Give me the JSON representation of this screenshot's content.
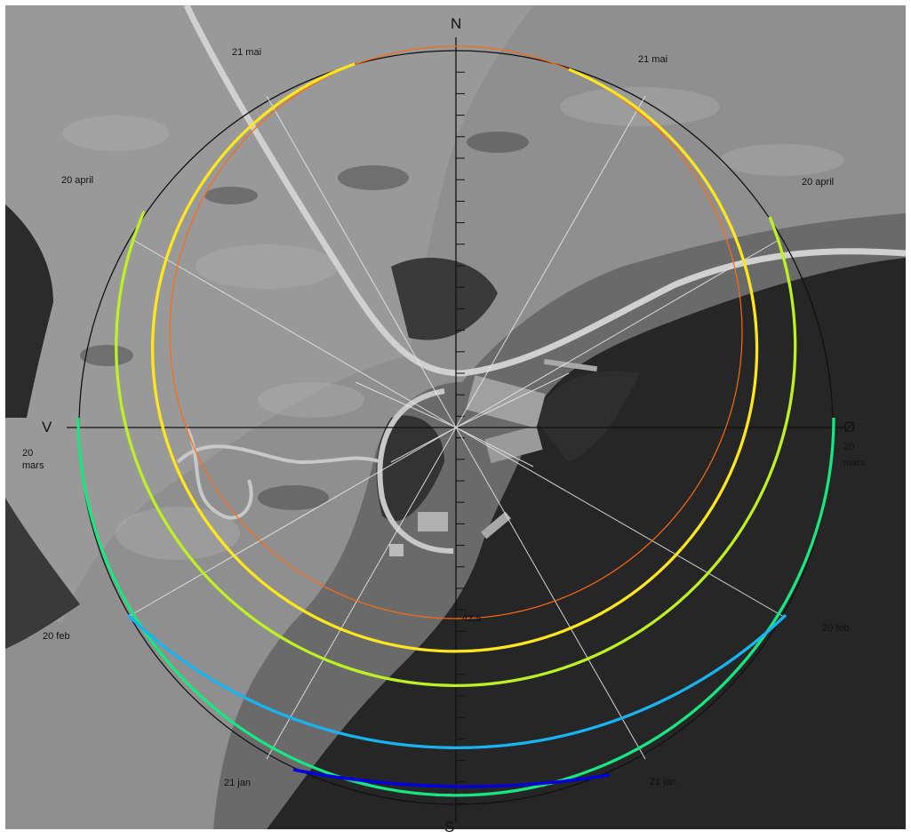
{
  "diagram": {
    "compass": {
      "north": "N",
      "south": "S",
      "west": "V",
      "east": "Ø"
    },
    "scale_label": "42,5",
    "date_labels": [
      {
        "id": "date-21-mai-left",
        "text": "21 mai"
      },
      {
        "id": "date-21-mai-right",
        "text": "21 mai"
      },
      {
        "id": "date-20-april-left",
        "text": "20 april"
      },
      {
        "id": "date-20-april-right",
        "text": "20 april"
      },
      {
        "id": "date-20-mars-left",
        "text": "20\nmars"
      },
      {
        "id": "date-20-mars-right",
        "text": "20\nmars"
      },
      {
        "id": "date-20-feb-left",
        "text": "20 feb"
      },
      {
        "id": "date-20-feb-right",
        "text": "20 feb"
      },
      {
        "id": "date-21-jan-left",
        "text": "21 jan"
      },
      {
        "id": "date-21-jan-right",
        "text": "21 jan"
      }
    ],
    "sun_path_colors": [
      "#0000dd",
      "#19b4f0",
      "#19e682",
      "#bff023",
      "#ffe61e",
      "#ff6a10"
    ]
  }
}
